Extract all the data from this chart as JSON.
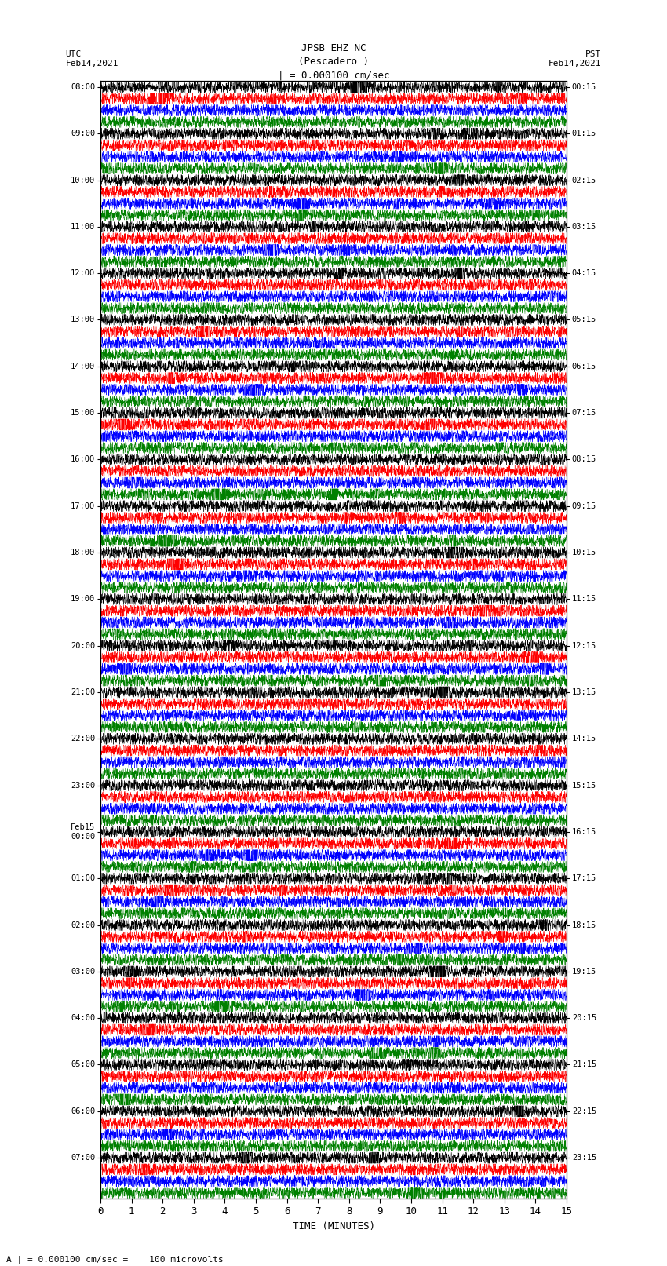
{
  "title_line1": "JPSB EHZ NC",
  "title_line2": "(Pescadero )",
  "title_line3": "| = 0.000100 cm/sec",
  "left_label_line1": "UTC",
  "left_label_line2": "Feb14,2021",
  "right_label_line1": "PST",
  "right_label_line2": "Feb14,2021",
  "bottom_label": "TIME (MINUTES)",
  "scale_label": "A | = 0.000100 cm/sec =    100 microvolts",
  "utc_times": [
    "08:00",
    "09:00",
    "10:00",
    "11:00",
    "12:00",
    "13:00",
    "14:00",
    "15:00",
    "16:00",
    "17:00",
    "18:00",
    "19:00",
    "20:00",
    "21:00",
    "22:00",
    "23:00",
    "00:00",
    "01:00",
    "02:00",
    "03:00",
    "04:00",
    "05:00",
    "06:00",
    "07:00"
  ],
  "pst_times": [
    "00:15",
    "01:15",
    "02:15",
    "03:15",
    "04:15",
    "05:15",
    "06:15",
    "07:15",
    "08:15",
    "09:15",
    "10:15",
    "11:15",
    "12:15",
    "13:15",
    "14:15",
    "15:15",
    "16:15",
    "17:15",
    "18:15",
    "19:15",
    "20:15",
    "21:15",
    "22:15",
    "23:15"
  ],
  "n_traces_per_hour": 4,
  "n_hours": 24,
  "colors": [
    "black",
    "red",
    "blue",
    "green"
  ],
  "bg_color": "white",
  "x_ticks": [
    0,
    1,
    2,
    3,
    4,
    5,
    6,
    7,
    8,
    9,
    10,
    11,
    12,
    13,
    14,
    15
  ],
  "x_min": 0,
  "x_max": 15,
  "fig_width": 8.5,
  "fig_height": 16.13,
  "feb15_hour_idx": 16
}
